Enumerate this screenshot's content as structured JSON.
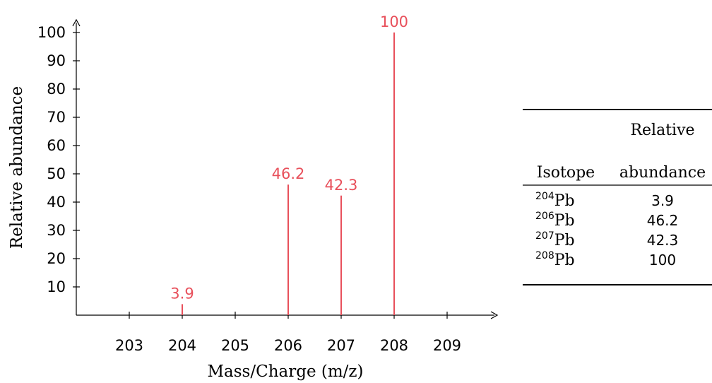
{
  "chart_data": {
    "type": "bar",
    "x": [
      204,
      206,
      207,
      208
    ],
    "values": [
      3.9,
      46.2,
      42.3,
      100
    ],
    "data_labels": [
      "3.9",
      "46.2",
      "42.3",
      "100"
    ],
    "xlabel": "Mass/Charge (m/z)",
    "ylabel": "Relative abundance",
    "x_ticks": [
      "203",
      "204",
      "205",
      "206",
      "207",
      "208",
      "209"
    ],
    "x_tick_values": [
      203,
      204,
      205,
      206,
      207,
      208,
      209
    ],
    "y_ticks": [
      "10",
      "20",
      "30",
      "40",
      "50",
      "60",
      "70",
      "80",
      "90",
      "100"
    ],
    "y_tick_values": [
      10,
      20,
      30,
      40,
      50,
      60,
      70,
      80,
      90,
      100
    ],
    "xlim": [
      202,
      209.9
    ],
    "ylim": [
      0,
      104
    ],
    "grid": false,
    "colors": {
      "bar": "#e8505b",
      "axis": "#000000"
    }
  },
  "table": {
    "header_top": "Relative",
    "header_isotope": "Isotope",
    "header_abundance": "abundance",
    "rows": [
      {
        "mass": "204",
        "element": "Pb",
        "abundance": "3.9"
      },
      {
        "mass": "206",
        "element": "Pb",
        "abundance": "46.2"
      },
      {
        "mass": "207",
        "element": "Pb",
        "abundance": "42.3"
      },
      {
        "mass": "208",
        "element": "Pb",
        "abundance": "100"
      }
    ]
  }
}
